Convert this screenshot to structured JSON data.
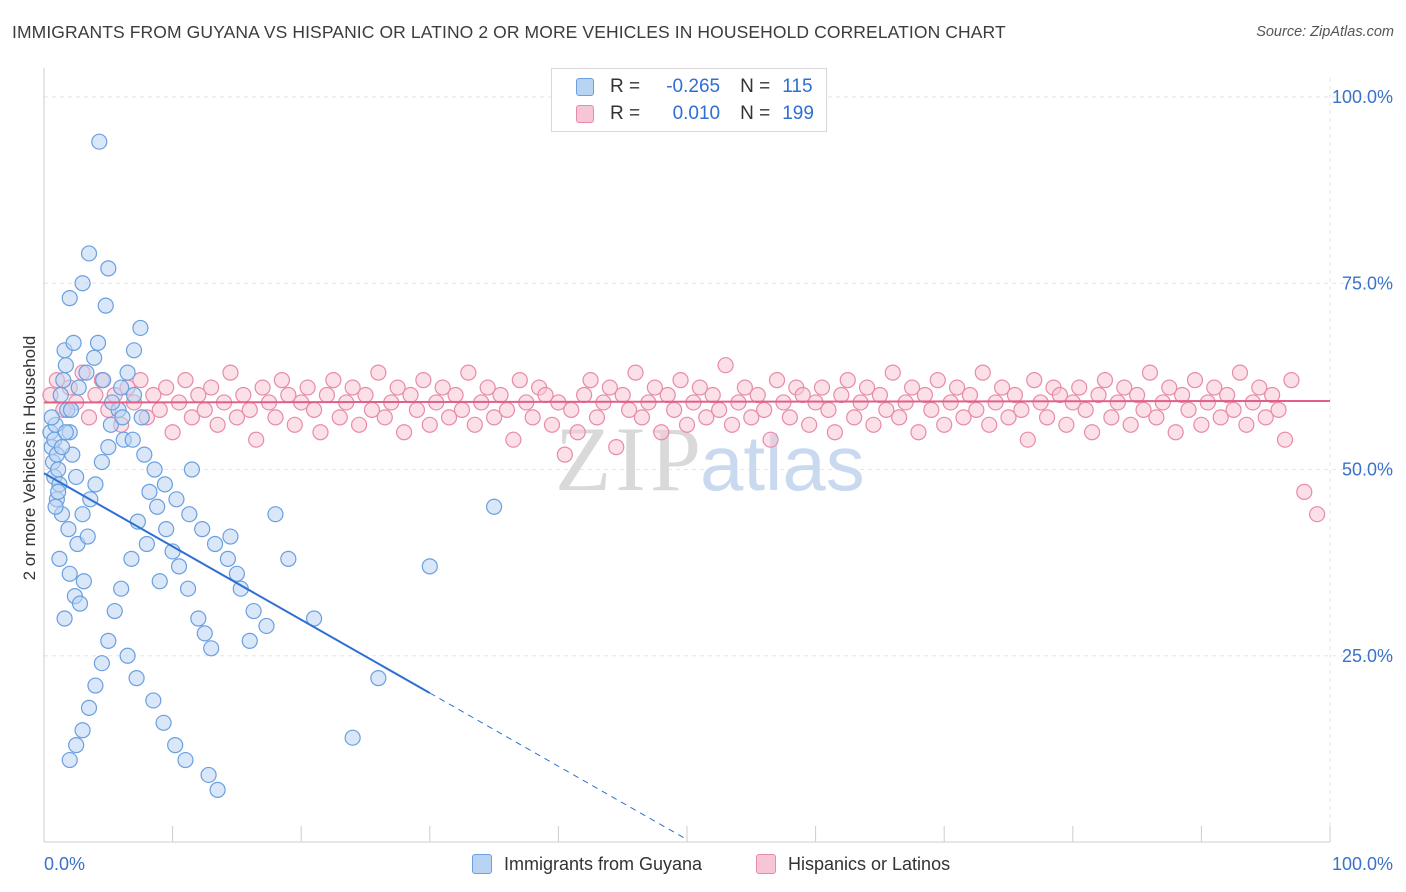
{
  "title": "IMMIGRANTS FROM GUYANA VS HISPANIC OR LATINO 2 OR MORE VEHICLES IN HOUSEHOLD CORRELATION CHART",
  "source": "Source: ZipAtlas.com",
  "watermark": {
    "zip": "ZIP",
    "atlas": "atlas"
  },
  "legend": {
    "r_label": "R =",
    "n_label": "N =",
    "rows": [
      {
        "r": "-0.265",
        "n": "115",
        "color": "#6a9fe0"
      },
      {
        "r": "0.010",
        "n": "199",
        "color": "#e88aa8"
      }
    ]
  },
  "chart_data": {
    "type": "scatter",
    "title": "IMMIGRANTS FROM GUYANA VS HISPANIC OR LATINO 2 OR MORE VEHICLES IN HOUSEHOLD CORRELATION CHART",
    "xlabel": "",
    "ylabel": "2 or more Vehicles in Household",
    "xlim": [
      0,
      100
    ],
    "ylim": [
      0,
      100
    ],
    "x_tick_labels": [
      "0.0%",
      "100.0%"
    ],
    "y_tick_labels": [
      "25.0%",
      "50.0%",
      "75.0%",
      "100.0%"
    ],
    "y_ticks": [
      25,
      50,
      75,
      100
    ],
    "grid": true,
    "legend_position": "top-center",
    "series": [
      {
        "name": "Immigrants from Guyana",
        "color": "#6a9fe0",
        "fill": "#b9d3f3",
        "r": -0.265,
        "n": 115,
        "trend": {
          "x0": 0.0,
          "y0": 49.5,
          "x1": 30.0,
          "y1": 20.0,
          "x_dash_end": 50.0
        },
        "points": [
          [
            0.5,
            55
          ],
          [
            0.6,
            53
          ],
          [
            0.7,
            51
          ],
          [
            0.8,
            49
          ],
          [
            0.9,
            56
          ],
          [
            1.0,
            52
          ],
          [
            1.1,
            50
          ],
          [
            1.2,
            48
          ],
          [
            0.6,
            57
          ],
          [
            0.8,
            54
          ],
          [
            1.0,
            46
          ],
          [
            1.3,
            60
          ],
          [
            1.5,
            62
          ],
          [
            1.8,
            58
          ],
          [
            2.0,
            55
          ],
          [
            2.2,
            52
          ],
          [
            2.5,
            49
          ],
          [
            1.7,
            64
          ],
          [
            1.6,
            66
          ],
          [
            2.3,
            67
          ],
          [
            1.4,
            44
          ],
          [
            1.9,
            42
          ],
          [
            2.6,
            40
          ],
          [
            1.2,
            38
          ],
          [
            2.0,
            36
          ],
          [
            2.4,
            33
          ],
          [
            1.6,
            30
          ],
          [
            2.8,
            32
          ],
          [
            3.1,
            35
          ],
          [
            3.4,
            41
          ],
          [
            3.0,
            44
          ],
          [
            3.6,
            46
          ],
          [
            4.0,
            48
          ],
          [
            4.5,
            51
          ],
          [
            5.0,
            53
          ],
          [
            5.2,
            56
          ],
          [
            5.8,
            58
          ],
          [
            6.0,
            61
          ],
          [
            6.5,
            63
          ],
          [
            7.0,
            66
          ],
          [
            7.5,
            69
          ],
          [
            4.2,
            67
          ],
          [
            4.8,
            72
          ],
          [
            3.0,
            75
          ],
          [
            2.0,
            73
          ],
          [
            3.5,
            79
          ],
          [
            5.0,
            77
          ],
          [
            4.3,
            94
          ],
          [
            7.0,
            60
          ],
          [
            7.6,
            57
          ],
          [
            6.2,
            54
          ],
          [
            8.2,
            47
          ],
          [
            8.8,
            45
          ],
          [
            9.5,
            42
          ],
          [
            10.0,
            39
          ],
          [
            10.5,
            37
          ],
          [
            11.2,
            34
          ],
          [
            12.0,
            30
          ],
          [
            12.5,
            28
          ],
          [
            13.0,
            26
          ],
          [
            9.0,
            35
          ],
          [
            8.0,
            40
          ],
          [
            7.3,
            43
          ],
          [
            6.8,
            38
          ],
          [
            6.0,
            34
          ],
          [
            5.5,
            31
          ],
          [
            5.0,
            27
          ],
          [
            4.5,
            24
          ],
          [
            4.0,
            21
          ],
          [
            3.5,
            18
          ],
          [
            3.0,
            15
          ],
          [
            2.5,
            13
          ],
          [
            2.0,
            11
          ],
          [
            6.5,
            25
          ],
          [
            7.2,
            22
          ],
          [
            8.5,
            19
          ],
          [
            9.3,
            16
          ],
          [
            10.2,
            13
          ],
          [
            11.0,
            11
          ],
          [
            12.8,
            9
          ],
          [
            13.5,
            7
          ],
          [
            11.5,
            50
          ],
          [
            14.5,
            41
          ],
          [
            15.0,
            36
          ],
          [
            16.0,
            27
          ],
          [
            18.0,
            44
          ],
          [
            19.0,
            38
          ],
          [
            21.0,
            30
          ],
          [
            24.0,
            14
          ],
          [
            26.0,
            22
          ],
          [
            35.0,
            45
          ],
          [
            30.0,
            37
          ],
          [
            0.9,
            45
          ],
          [
            1.1,
            47
          ],
          [
            1.4,
            53
          ],
          [
            1.7,
            55
          ],
          [
            2.1,
            58
          ],
          [
            2.7,
            61
          ],
          [
            3.3,
            63
          ],
          [
            3.9,
            65
          ],
          [
            4.6,
            62
          ],
          [
            5.3,
            59
          ],
          [
            6.1,
            57
          ],
          [
            6.9,
            54
          ],
          [
            7.8,
            52
          ],
          [
            8.6,
            50
          ],
          [
            9.4,
            48
          ],
          [
            10.3,
            46
          ],
          [
            11.3,
            44
          ],
          [
            12.3,
            42
          ],
          [
            13.3,
            40
          ],
          [
            14.3,
            38
          ],
          [
            15.3,
            34
          ],
          [
            16.3,
            31
          ],
          [
            17.3,
            29
          ]
        ]
      },
      {
        "name": "Hispanics or Latinos",
        "color": "#e88aa8",
        "fill": "#f7c6d6",
        "r": 0.01,
        "n": 199,
        "trend": {
          "x0": 0.0,
          "y0": 59.0,
          "x1": 100.0,
          "y1": 59.2
        },
        "points": [
          [
            0.5,
            60
          ],
          [
            1.0,
            62
          ],
          [
            1.5,
            58
          ],
          [
            2.0,
            61
          ],
          [
            2.5,
            59
          ],
          [
            3.0,
            63
          ],
          [
            3.5,
            57
          ],
          [
            4.0,
            60
          ],
          [
            4.5,
            62
          ],
          [
            5.0,
            58
          ],
          [
            5.5,
            60
          ],
          [
            6.0,
            56
          ],
          [
            6.5,
            61
          ],
          [
            7.0,
            59
          ],
          [
            7.5,
            62
          ],
          [
            8.0,
            57
          ],
          [
            8.5,
            60
          ],
          [
            9.0,
            58
          ],
          [
            9.5,
            61
          ],
          [
            10.0,
            55
          ],
          [
            10.5,
            59
          ],
          [
            11.0,
            62
          ],
          [
            11.5,
            57
          ],
          [
            12.0,
            60
          ],
          [
            12.5,
            58
          ],
          [
            13.0,
            61
          ],
          [
            13.5,
            56
          ],
          [
            14.0,
            59
          ],
          [
            14.5,
            63
          ],
          [
            15.0,
            57
          ],
          [
            15.5,
            60
          ],
          [
            16.0,
            58
          ],
          [
            16.5,
            54
          ],
          [
            17.0,
            61
          ],
          [
            17.5,
            59
          ],
          [
            18.0,
            57
          ],
          [
            18.5,
            62
          ],
          [
            19.0,
            60
          ],
          [
            19.5,
            56
          ],
          [
            20.0,
            59
          ],
          [
            20.5,
            61
          ],
          [
            21.0,
            58
          ],
          [
            21.5,
            55
          ],
          [
            22.0,
            60
          ],
          [
            22.5,
            62
          ],
          [
            23.0,
            57
          ],
          [
            23.5,
            59
          ],
          [
            24.0,
            61
          ],
          [
            24.5,
            56
          ],
          [
            25.0,
            60
          ],
          [
            25.5,
            58
          ],
          [
            26.0,
            63
          ],
          [
            26.5,
            57
          ],
          [
            27.0,
            59
          ],
          [
            27.5,
            61
          ],
          [
            28.0,
            55
          ],
          [
            28.5,
            60
          ],
          [
            29.0,
            58
          ],
          [
            29.5,
            62
          ],
          [
            30.0,
            56
          ],
          [
            30.5,
            59
          ],
          [
            31.0,
            61
          ],
          [
            31.5,
            57
          ],
          [
            32.0,
            60
          ],
          [
            32.5,
            58
          ],
          [
            33.0,
            63
          ],
          [
            33.5,
            56
          ],
          [
            34.0,
            59
          ],
          [
            34.5,
            61
          ],
          [
            35.0,
            57
          ],
          [
            35.5,
            60
          ],
          [
            36.0,
            58
          ],
          [
            36.5,
            54
          ],
          [
            37.0,
            62
          ],
          [
            37.5,
            59
          ],
          [
            38.0,
            57
          ],
          [
            38.5,
            61
          ],
          [
            39.0,
            60
          ],
          [
            39.5,
            56
          ],
          [
            40.0,
            59
          ],
          [
            40.5,
            52
          ],
          [
            41.0,
            58
          ],
          [
            41.5,
            55
          ],
          [
            42.0,
            60
          ],
          [
            42.5,
            62
          ],
          [
            43.0,
            57
          ],
          [
            43.5,
            59
          ],
          [
            44.0,
            61
          ],
          [
            44.5,
            53
          ],
          [
            45.0,
            60
          ],
          [
            45.5,
            58
          ],
          [
            46.0,
            63
          ],
          [
            46.5,
            57
          ],
          [
            47.0,
            59
          ],
          [
            47.5,
            61
          ],
          [
            48.0,
            55
          ],
          [
            48.5,
            60
          ],
          [
            49.0,
            58
          ],
          [
            49.5,
            62
          ],
          [
            50.0,
            56
          ],
          [
            50.5,
            59
          ],
          [
            51.0,
            61
          ],
          [
            51.5,
            57
          ],
          [
            52.0,
            60
          ],
          [
            52.5,
            58
          ],
          [
            53.0,
            64
          ],
          [
            53.5,
            56
          ],
          [
            54.0,
            59
          ],
          [
            54.5,
            61
          ],
          [
            55.0,
            57
          ],
          [
            55.5,
            60
          ],
          [
            56.0,
            58
          ],
          [
            56.5,
            54
          ],
          [
            57.0,
            62
          ],
          [
            57.5,
            59
          ],
          [
            58.0,
            57
          ],
          [
            58.5,
            61
          ],
          [
            59.0,
            60
          ],
          [
            59.5,
            56
          ],
          [
            60.0,
            59
          ],
          [
            60.5,
            61
          ],
          [
            61.0,
            58
          ],
          [
            61.5,
            55
          ],
          [
            62.0,
            60
          ],
          [
            62.5,
            62
          ],
          [
            63.0,
            57
          ],
          [
            63.5,
            59
          ],
          [
            64.0,
            61
          ],
          [
            64.5,
            56
          ],
          [
            65.0,
            60
          ],
          [
            65.5,
            58
          ],
          [
            66.0,
            63
          ],
          [
            66.5,
            57
          ],
          [
            67.0,
            59
          ],
          [
            67.5,
            61
          ],
          [
            68.0,
            55
          ],
          [
            68.5,
            60
          ],
          [
            69.0,
            58
          ],
          [
            69.5,
            62
          ],
          [
            70.0,
            56
          ],
          [
            70.5,
            59
          ],
          [
            71.0,
            61
          ],
          [
            71.5,
            57
          ],
          [
            72.0,
            60
          ],
          [
            72.5,
            58
          ],
          [
            73.0,
            63
          ],
          [
            73.5,
            56
          ],
          [
            74.0,
            59
          ],
          [
            74.5,
            61
          ],
          [
            75.0,
            57
          ],
          [
            75.5,
            60
          ],
          [
            76.0,
            58
          ],
          [
            76.5,
            54
          ],
          [
            77.0,
            62
          ],
          [
            77.5,
            59
          ],
          [
            78.0,
            57
          ],
          [
            78.5,
            61
          ],
          [
            79.0,
            60
          ],
          [
            79.5,
            56
          ],
          [
            80.0,
            59
          ],
          [
            80.5,
            61
          ],
          [
            81.0,
            58
          ],
          [
            81.5,
            55
          ],
          [
            82.0,
            60
          ],
          [
            82.5,
            62
          ],
          [
            83.0,
            57
          ],
          [
            83.5,
            59
          ],
          [
            84.0,
            61
          ],
          [
            84.5,
            56
          ],
          [
            85.0,
            60
          ],
          [
            85.5,
            58
          ],
          [
            86.0,
            63
          ],
          [
            86.5,
            57
          ],
          [
            87.0,
            59
          ],
          [
            87.5,
            61
          ],
          [
            88.0,
            55
          ],
          [
            88.5,
            60
          ],
          [
            89.0,
            58
          ],
          [
            89.5,
            62
          ],
          [
            90.0,
            56
          ],
          [
            90.5,
            59
          ],
          [
            91.0,
            61
          ],
          [
            91.5,
            57
          ],
          [
            92.0,
            60
          ],
          [
            92.5,
            58
          ],
          [
            93.0,
            63
          ],
          [
            93.5,
            56
          ],
          [
            94.0,
            59
          ],
          [
            94.5,
            61
          ],
          [
            95.0,
            57
          ],
          [
            95.5,
            60
          ],
          [
            96.0,
            58
          ],
          [
            96.5,
            54
          ],
          [
            97.0,
            62
          ],
          [
            98.0,
            47
          ],
          [
            99.0,
            44
          ]
        ]
      }
    ]
  },
  "bottom_legend": [
    {
      "label": "Immigrants from Guyana",
      "color": "#6a9fe0"
    },
    {
      "label": "Hispanics or Latinos",
      "color": "#e88aa8"
    }
  ]
}
